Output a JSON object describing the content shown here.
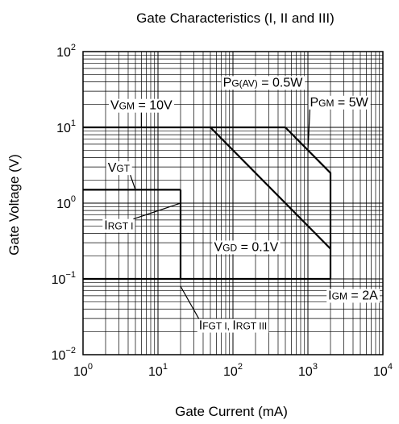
{
  "chart_data": {
    "type": "line",
    "title": "Gate Characteristics (I, II and III)",
    "xlabel": "Gate Current (mA)",
    "ylabel": "Gate Voltage (V)",
    "x_scale": "log",
    "y_scale": "log",
    "xlim": [
      1,
      10000
    ],
    "ylim": [
      0.01,
      100
    ],
    "grid": true,
    "x_ticks": [
      {
        "value": 1,
        "base": "10",
        "exp": "0"
      },
      {
        "value": 10,
        "base": "10",
        "exp": "1"
      },
      {
        "value": 100,
        "base": "10",
        "exp": "2"
      },
      {
        "value": 1000,
        "base": "10",
        "exp": "3"
      },
      {
        "value": 10000,
        "base": "10",
        "exp": "4"
      }
    ],
    "y_ticks": [
      {
        "value": 100,
        "base": "10",
        "exp": "2"
      },
      {
        "value": 10,
        "base": "10",
        "exp": "1"
      },
      {
        "value": 1,
        "base": "10",
        "exp": "0"
      },
      {
        "value": 0.1,
        "base": "10",
        "exp": "−1"
      },
      {
        "value": 0.01,
        "base": "10",
        "exp": "−2"
      }
    ],
    "lines": [
      {
        "name": "VGM",
        "points": [
          [
            1,
            10
          ],
          [
            500,
            10
          ]
        ]
      },
      {
        "name": "PGM",
        "points": [
          [
            500,
            10
          ],
          [
            2000,
            2.5
          ],
          [
            2000,
            0.1
          ]
        ]
      },
      {
        "name": "PG(AV)",
        "points": [
          [
            50,
            10
          ],
          [
            2000,
            0.25
          ]
        ]
      },
      {
        "name": "VGT",
        "points": [
          [
            1,
            1.5
          ],
          [
            20,
            1.5
          ]
        ]
      },
      {
        "name": "IRGT I",
        "points": [
          [
            20,
            1.5
          ],
          [
            20,
            0.1
          ]
        ]
      },
      {
        "name": "VGD",
        "points": [
          [
            1,
            0.1
          ],
          [
            2000,
            0.1
          ]
        ]
      }
    ],
    "annotations": [
      {
        "parts": [
          [
            "P",
            "n"
          ],
          [
            "G(AV)",
            "s"
          ],
          [
            "",
            "n"
          ]
        ],
        "suffix": " = 0.5W",
        "anchor": [
          250,
          40
        ],
        "target": [
          250,
          40
        ],
        "leader": false
      },
      {
        "parts": [
          [
            "V",
            "n"
          ],
          [
            "GM",
            "s"
          ]
        ],
        "suffix": " = 10V",
        "anchor": [
          6,
          20
        ],
        "target": [
          6,
          10
        ],
        "leader": true
      },
      {
        "parts": [
          [
            "P",
            "n"
          ],
          [
            "GM",
            "s"
          ]
        ],
        "suffix": " = 5W",
        "anchor": [
          2600,
          22
        ],
        "target": [
          1000,
          5
        ],
        "leader": true
      },
      {
        "parts": [
          [
            "V",
            "n"
          ],
          [
            "GT",
            "s"
          ]
        ],
        "suffix": "",
        "anchor": [
          3,
          3
        ],
        "target": [
          5,
          1.5
        ],
        "leader": true
      },
      {
        "parts": [
          [
            "I",
            "n"
          ],
          [
            "RGT I",
            "s"
          ]
        ],
        "suffix": "",
        "anchor": [
          3,
          0.52
        ],
        "target": [
          20,
          1.0
        ],
        "leader": true
      },
      {
        "parts": [
          [
            "V",
            "n"
          ],
          [
            "GD",
            "s"
          ]
        ],
        "suffix": " = 0.1V",
        "anchor": [
          150,
          0.27
        ],
        "target": [
          150,
          0.27
        ],
        "leader": false
      },
      {
        "parts": [
          [
            "I",
            "n"
          ],
          [
            "FGT I, ",
            "s"
          ],
          [
            "I",
            "n"
          ],
          [
            "RGT III",
            "s"
          ]
        ],
        "suffix": "",
        "anchor": [
          100,
          0.025
        ],
        "target": [
          20,
          0.08
        ],
        "leader": true
      },
      {
        "parts": [
          [
            "I",
            "n"
          ],
          [
            "GM",
            "s"
          ]
        ],
        "suffix": " = 2A",
        "anchor": [
          4000,
          0.062
        ],
        "target": [
          2000,
          0.15
        ],
        "leader": true
      }
    ]
  }
}
